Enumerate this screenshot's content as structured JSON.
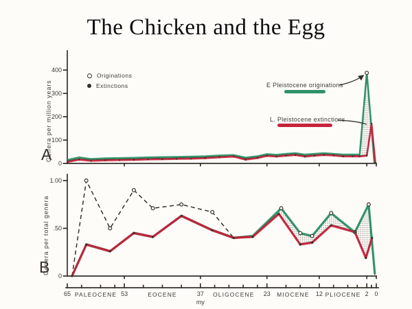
{
  "slide": {
    "title": "The Chicken and the Egg"
  },
  "figure": {
    "ink_color": "#35312a",
    "origination_color": "#2f9268",
    "extinction_color": "#c8233c",
    "timeline": {
      "unit_label": "my",
      "boundaries": [
        {
          "t": 65,
          "label": "65"
        },
        {
          "t": 53,
          "label": "53"
        },
        {
          "t": 37,
          "label": "37"
        },
        {
          "t": 23,
          "label": "23"
        },
        {
          "t": 12,
          "label": "12"
        },
        {
          "t": 2,
          "label": "2"
        },
        {
          "t": 0,
          "label": "0"
        }
      ],
      "epochs": [
        {
          "label": "PALEOCENE",
          "from": 65,
          "to": 53
        },
        {
          "label": "EOCENE",
          "from": 53,
          "to": 37
        },
        {
          "label": "OLIGOCENE",
          "from": 37,
          "to": 23
        },
        {
          "label": "MIOCENE",
          "from": 23,
          "to": 12
        },
        {
          "label": "PLIOCENE",
          "from": 12,
          "to": 2
        }
      ],
      "minor_ticks": [
        62,
        58,
        55,
        49,
        45,
        41,
        34,
        31,
        28,
        25,
        19,
        16,
        9,
        6,
        4,
        1
      ]
    }
  },
  "chart_data": [
    {
      "panel_label": "A",
      "type": "line",
      "ylabel": "Genera per million years",
      "xlabel": "my (65 to 0)",
      "ylim": [
        0,
        480
      ],
      "xlim": [
        65,
        0
      ],
      "yticks": [
        {
          "v": 0,
          "label": "0"
        },
        {
          "v": 100,
          "label": "100"
        },
        {
          "v": 200,
          "label": "200"
        },
        {
          "v": 300,
          "label": "300"
        },
        {
          "v": 400,
          "label": "400"
        }
      ],
      "legend": [
        {
          "marker": "open-circle",
          "label": "Originations"
        },
        {
          "marker": "filled-circle",
          "label": "Extinctions"
        }
      ],
      "annotations": [
        {
          "text": "E Pleistocene originations",
          "color_role": "origination"
        },
        {
          "text": "L. Pleistocene extinctions",
          "color_role": "extinction"
        }
      ],
      "series": [
        {
          "name": "Originations",
          "role": "origination",
          "marker": "open-circle",
          "marker_points": [
            [
              2,
              388
            ]
          ],
          "points": [
            [
              65,
              15
            ],
            [
              62.5,
              26
            ],
            [
              60,
              19
            ],
            [
              57,
              22
            ],
            [
              54,
              23
            ],
            [
              51,
              24
            ],
            [
              48,
              26
            ],
            [
              45,
              27
            ],
            [
              42,
              28
            ],
            [
              39,
              29
            ],
            [
              36,
              31
            ],
            [
              33,
              34
            ],
            [
              30,
              36
            ],
            [
              27.5,
              25
            ],
            [
              25,
              31
            ],
            [
              23,
              40
            ],
            [
              21,
              37
            ],
            [
              19,
              41
            ],
            [
              17,
              44
            ],
            [
              15,
              38
            ],
            [
              13,
              41
            ],
            [
              11,
              44
            ],
            [
              9,
              41
            ],
            [
              7,
              38
            ],
            [
              5,
              38
            ],
            [
              3.5,
              38
            ],
            [
              2,
              388
            ],
            [
              0.4,
              2
            ]
          ]
        },
        {
          "name": "Extinctions",
          "role": "extinction",
          "marker": "dot",
          "points": [
            [
              65,
              6
            ],
            [
              62.5,
              16
            ],
            [
              60,
              11
            ],
            [
              57,
              13
            ],
            [
              54,
              14
            ],
            [
              51,
              15
            ],
            [
              48,
              17
            ],
            [
              45,
              18
            ],
            [
              42,
              19
            ],
            [
              39,
              20
            ],
            [
              36,
              22
            ],
            [
              33,
              26
            ],
            [
              30,
              29
            ],
            [
              27.5,
              16
            ],
            [
              25,
              23
            ],
            [
              23,
              32
            ],
            [
              21,
              29
            ],
            [
              19,
              33
            ],
            [
              17,
              36
            ],
            [
              15,
              29
            ],
            [
              13,
              33
            ],
            [
              11,
              36
            ],
            [
              9,
              34
            ],
            [
              7,
              30
            ],
            [
              5,
              30
            ],
            [
              3.5,
              30
            ],
            [
              2,
              33
            ],
            [
              1,
              170
            ],
            [
              0.2,
              3
            ]
          ]
        }
      ],
      "shaded_gap": {
        "from_t": 3.5,
        "to_t": 0.2
      }
    },
    {
      "panel_label": "B",
      "type": "line",
      "ylabel": "Genera per total genera",
      "xlabel": "my (65 to 0)",
      "ylim": [
        0,
        1.05
      ],
      "xlim": [
        65,
        0
      ],
      "yticks": [
        {
          "v": 0,
          "label": "0"
        },
        {
          "v": 0.5,
          "label": ".50"
        },
        {
          "v": 1,
          "label": "1.00"
        }
      ],
      "series": [
        {
          "name": "Originations (dashed early record)",
          "role": "ink",
          "style": "dashed",
          "marker": "open-circle",
          "marker_points": [
            [
              61,
              1.0
            ],
            [
              56,
              0.5
            ],
            [
              51,
              0.9
            ],
            [
              47,
              0.71
            ],
            [
              41,
              0.75
            ],
            [
              34.5,
              0.67
            ]
          ],
          "points": [
            [
              64,
              0
            ],
            [
              61,
              1.0
            ],
            [
              56,
              0.5
            ],
            [
              51,
              0.9
            ],
            [
              47,
              0.71
            ],
            [
              41,
              0.75
            ],
            [
              34.5,
              0.67
            ],
            [
              30,
              0.4
            ]
          ]
        },
        {
          "name": "Originations",
          "role": "origination",
          "marker": "open-circle",
          "marker_points": [
            [
              20,
              0.71
            ],
            [
              16,
              0.45
            ],
            [
              13.5,
              0.42
            ],
            [
              9.5,
              0.66
            ],
            [
              4.5,
              0.46
            ],
            [
              1.6,
              0.75
            ]
          ],
          "points": [
            [
              64,
              0
            ],
            [
              61,
              0.33
            ],
            [
              56,
              0.26
            ],
            [
              51,
              0.45
            ],
            [
              47,
              0.41
            ],
            [
              41,
              0.63
            ],
            [
              34.5,
              0.48
            ],
            [
              30,
              0.4
            ],
            [
              26,
              0.42
            ],
            [
              20,
              0.71
            ],
            [
              16,
              0.45
            ],
            [
              13.5,
              0.42
            ],
            [
              9.5,
              0.66
            ],
            [
              4.5,
              0.46
            ],
            [
              1.6,
              0.75
            ],
            [
              0.3,
              0.02
            ]
          ]
        },
        {
          "name": "Extinctions",
          "role": "extinction",
          "marker": "dot",
          "points": [
            [
              64,
              0
            ],
            [
              61,
              0.33
            ],
            [
              56,
              0.26
            ],
            [
              51,
              0.45
            ],
            [
              47,
              0.41
            ],
            [
              41,
              0.63
            ],
            [
              34.5,
              0.48
            ],
            [
              30,
              0.4
            ],
            [
              26,
              0.41
            ],
            [
              20.5,
              0.65
            ],
            [
              16,
              0.33
            ],
            [
              13.5,
              0.35
            ],
            [
              9.5,
              0.53
            ],
            [
              4.5,
              0.46
            ],
            [
              2.2,
              0.19
            ],
            [
              0.9,
              0.4
            ]
          ]
        }
      ],
      "shaded_gap": {
        "from_t": 26,
        "to_t": 0.3
      }
    }
  ]
}
